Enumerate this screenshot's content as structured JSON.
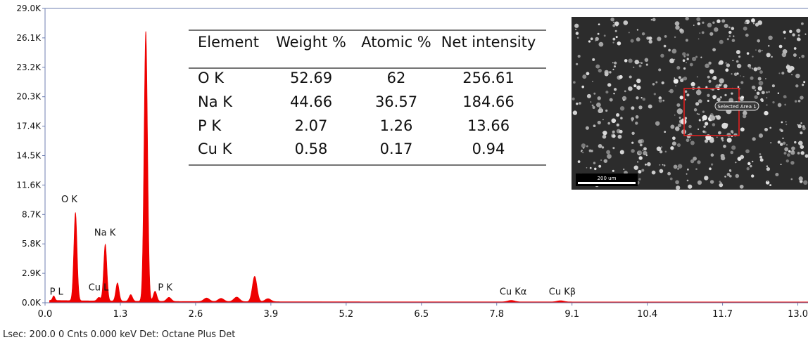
{
  "chart_data": {
    "type": "line",
    "title": "",
    "xlabel": "",
    "ylabel": "",
    "xlim": [
      0,
      13.2
    ],
    "ylim": [
      0,
      29000
    ],
    "x_ticks": [
      "0.0",
      "1.3",
      "2.6",
      "3.9",
      "5.2",
      "6.5",
      "7.8",
      "9.1",
      "10.4",
      "11.7",
      "13.0"
    ],
    "x_tick_values": [
      0,
      1.3,
      2.6,
      3.9,
      5.2,
      6.5,
      7.8,
      9.1,
      10.4,
      11.7,
      13.0
    ],
    "y_ticks": [
      "0.0K",
      "2.9K",
      "5.8K",
      "8.7K",
      "11.6K",
      "14.5K",
      "17.4K",
      "20.3K",
      "23.2K",
      "26.1K",
      "29.0K"
    ],
    "y_tick_values": [
      0,
      2900,
      5800,
      8700,
      11600,
      14500,
      17400,
      20300,
      23200,
      26100,
      29000
    ],
    "series_color": "#ee0000",
    "peaks": [
      {
        "x": 0.15,
        "y": 450,
        "w": 0.02
      },
      {
        "x": 0.525,
        "y": 8700,
        "w": 0.028
      },
      {
        "x": 0.93,
        "y": 350,
        "w": 0.03
      },
      {
        "x": 1.04,
        "y": 5600,
        "w": 0.028
      },
      {
        "x": 1.25,
        "y": 1800,
        "w": 0.028
      },
      {
        "x": 1.48,
        "y": 650,
        "w": 0.03
      },
      {
        "x": 1.74,
        "y": 26600,
        "w": 0.03
      },
      {
        "x": 1.9,
        "y": 1000,
        "w": 0.03
      },
      {
        "x": 2.14,
        "y": 400,
        "w": 0.04
      },
      {
        "x": 2.79,
        "y": 350,
        "w": 0.05
      },
      {
        "x": 3.04,
        "y": 320,
        "w": 0.05
      },
      {
        "x": 3.31,
        "y": 450,
        "w": 0.05
      },
      {
        "x": 3.62,
        "y": 2500,
        "w": 0.04
      },
      {
        "x": 3.85,
        "y": 300,
        "w": 0.05
      },
      {
        "x": 8.05,
        "y": 150,
        "w": 0.06
      },
      {
        "x": 8.9,
        "y": 120,
        "w": 0.06
      }
    ],
    "annotations": [
      {
        "text": "O  K",
        "x": 0.28,
        "y": 9900
      },
      {
        "text": "Na K",
        "x": 0.85,
        "y": 6600
      },
      {
        "text": "P  L",
        "x": 0.08,
        "y": 800
      },
      {
        "text": "Cu L",
        "x": 0.75,
        "y": 1200
      },
      {
        "text": "P  K",
        "x": 1.95,
        "y": 1200
      },
      {
        "text": "Cu Kα",
        "x": 7.85,
        "y": 800
      },
      {
        "text": "Cu Kβ",
        "x": 8.7,
        "y": 800
      }
    ],
    "table": {
      "headers": [
        "Element",
        "Weight %",
        "Atomic %",
        "Net intensity"
      ],
      "rows": [
        [
          "O K",
          "52.69",
          "62",
          "256.61"
        ],
        [
          "Na K",
          "44.66",
          "36.57",
          "184.66"
        ],
        [
          "P K",
          "2.07",
          "1.26",
          "13.66"
        ],
        [
          "Cu K",
          "0.58",
          "0.17",
          "0.94"
        ]
      ]
    }
  },
  "sem_image": {
    "selection_label": "Selected Area 1",
    "scale_bar_label": "200 um"
  },
  "status_bar": {
    "text": "Lsec: 200.0 0 Cnts  0.000 keV Det: Octane Plus Det"
  }
}
